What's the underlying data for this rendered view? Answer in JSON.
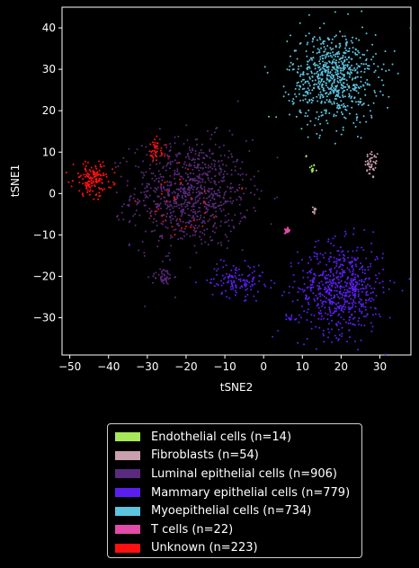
{
  "chart_data": {
    "type": "scatter",
    "xlabel": "tSNE2",
    "ylabel": "tSNE1",
    "xlim": [
      -52,
      38
    ],
    "ylim": [
      -39,
      45
    ],
    "xticks": [
      -50,
      -40,
      -30,
      -20,
      -10,
      0,
      10,
      20,
      30
    ],
    "yticks": [
      -30,
      -20,
      -10,
      0,
      10,
      20,
      30,
      40
    ],
    "grid": false,
    "legend_position": "below",
    "series": [
      {
        "name": "Endothelial cells (n=14)",
        "color": "#a6e85a",
        "clusters": [
          {
            "cx": 12.5,
            "cy": 6,
            "sx": 0.4,
            "sy": 0.6,
            "n": 12
          },
          {
            "cx": 11,
            "cy": 9,
            "sx": 0.3,
            "sy": 0.3,
            "n": 2
          }
        ]
      },
      {
        "name": "Fibroblasts (n=54)",
        "color": "#c8a0ae",
        "clusters": [
          {
            "cx": 28,
            "cy": 7,
            "sx": 0.9,
            "sy": 1.8,
            "n": 44
          },
          {
            "cx": 13,
            "cy": -4,
            "sx": 0.4,
            "sy": 0.5,
            "n": 10
          }
        ]
      },
      {
        "name": "Luminal epithelial cells (n=906)",
        "color": "#5a2a7e",
        "clusters": [
          {
            "cx": -19,
            "cy": 0,
            "sx": 7.5,
            "sy": 6.5,
            "n": 860
          },
          {
            "cx": -26,
            "cy": -20,
            "sx": 1.4,
            "sy": 1.0,
            "n": 46
          }
        ]
      },
      {
        "name": "Mammary epithelial cells (n=779)",
        "color": "#5a1ff0",
        "clusters": [
          {
            "cx": 20,
            "cy": -23,
            "sx": 5.5,
            "sy": 5.5,
            "n": 640
          },
          {
            "cx": -7,
            "cy": -21,
            "sx": 3.5,
            "sy": 2.0,
            "n": 125
          },
          {
            "cx": 7,
            "cy": -30,
            "sx": 0.8,
            "sy": 0.5,
            "n": 14
          }
        ]
      },
      {
        "name": "Myoepithelial cells (n=734)",
        "color": "#5bc4e0",
        "clusters": [
          {
            "cx": 18,
            "cy": 28,
            "sx": 5.5,
            "sy": 5.5,
            "n": 734
          }
        ]
      },
      {
        "name": "T cells (n=22)",
        "color": "#e24ba8",
        "clusters": [
          {
            "cx": 6,
            "cy": -9,
            "sx": 0.4,
            "sy": 0.4,
            "n": 22
          }
        ]
      },
      {
        "name": "Unknown (n=223)",
        "color": "#ff1010",
        "clusters": [
          {
            "cx": -44,
            "cy": 3.5,
            "sx": 2.5,
            "sy": 2.0,
            "n": 150
          },
          {
            "cx": -28,
            "cy": 10,
            "sx": 1.5,
            "sy": 1.5,
            "n": 40
          },
          {
            "cx": -20,
            "cy": -2,
            "sx": 6,
            "sy": 6,
            "n": 33
          }
        ]
      }
    ]
  }
}
